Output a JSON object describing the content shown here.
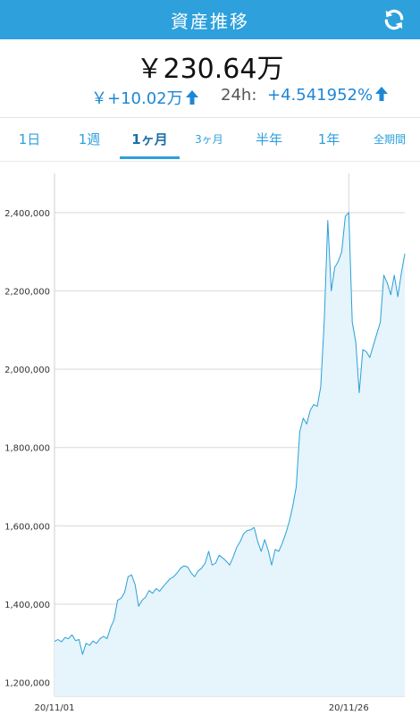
{
  "header": {
    "title": "資産推移",
    "refresh_icon": "refresh-icon"
  },
  "summary": {
    "total": "￥230.64万",
    "change_amount": "￥+10.02万",
    "change_label": "24h:",
    "change_percent": "+4.541952%"
  },
  "tabs": [
    {
      "label": "1日"
    },
    {
      "label": "1週"
    },
    {
      "label": "1ヶ月",
      "active": true
    },
    {
      "label": "3ヶ月"
    },
    {
      "label": "半年"
    },
    {
      "label": "1年"
    },
    {
      "label": "全期間"
    }
  ],
  "colors": {
    "accent": "#2ea0dc",
    "line": "#2aa0d8",
    "fill": "#e6f4fb",
    "positive": "#1d87d6"
  },
  "chart_data": {
    "type": "area",
    "x_ticks": [
      "20/11/01",
      "20/11/26"
    ],
    "y_ticks": [
      "1,200,000",
      "1,400,000",
      "1,600,000",
      "1,800,000",
      "2,000,000",
      "2,200,000",
      "2,400,000"
    ],
    "ylim": [
      1165000,
      2500000
    ],
    "xlim": [
      0,
      100
    ],
    "x_tick_positions": [
      0,
      84
    ],
    "grid": "horizontal",
    "series": [
      {
        "values": [
          [
            0,
            1305000
          ],
          [
            1,
            1310000
          ],
          [
            2,
            1304000
          ],
          [
            3,
            1315000
          ],
          [
            4,
            1312000
          ],
          [
            5,
            1322000
          ],
          [
            6,
            1307000
          ],
          [
            7,
            1310000
          ],
          [
            8,
            1272000
          ],
          [
            9,
            1300000
          ],
          [
            10,
            1295000
          ],
          [
            11,
            1306000
          ],
          [
            12,
            1300000
          ],
          [
            13,
            1312000
          ],
          [
            14,
            1318000
          ],
          [
            15,
            1312000
          ],
          [
            16,
            1340000
          ],
          [
            17,
            1360000
          ],
          [
            18,
            1410000
          ],
          [
            19,
            1415000
          ],
          [
            20,
            1430000
          ],
          [
            21,
            1470000
          ],
          [
            22,
            1475000
          ],
          [
            23,
            1450000
          ],
          [
            24,
            1395000
          ],
          [
            25,
            1410000
          ],
          [
            26,
            1418000
          ],
          [
            27,
            1435000
          ],
          [
            28,
            1428000
          ],
          [
            29,
            1440000
          ],
          [
            30,
            1433000
          ],
          [
            31,
            1445000
          ],
          [
            32,
            1455000
          ],
          [
            33,
            1465000
          ],
          [
            34,
            1470000
          ],
          [
            35,
            1480000
          ],
          [
            36,
            1492000
          ],
          [
            37,
            1498000
          ],
          [
            38,
            1495000
          ],
          [
            39,
            1480000
          ],
          [
            40,
            1470000
          ],
          [
            41,
            1485000
          ],
          [
            42,
            1492000
          ],
          [
            43,
            1505000
          ],
          [
            44,
            1535000
          ],
          [
            45,
            1500000
          ],
          [
            46,
            1505000
          ],
          [
            47,
            1525000
          ],
          [
            48,
            1518000
          ],
          [
            49,
            1510000
          ],
          [
            50,
            1500000
          ],
          [
            51,
            1520000
          ],
          [
            52,
            1545000
          ],
          [
            53,
            1560000
          ],
          [
            54,
            1580000
          ],
          [
            55,
            1588000
          ],
          [
            56,
            1590000
          ],
          [
            57,
            1596000
          ],
          [
            58,
            1560000
          ],
          [
            59,
            1535000
          ],
          [
            60,
            1565000
          ],
          [
            61,
            1538000
          ],
          [
            62,
            1500000
          ],
          [
            63,
            1540000
          ],
          [
            64,
            1535000
          ],
          [
            65,
            1555000
          ],
          [
            66,
            1580000
          ],
          [
            67,
            1610000
          ],
          [
            68,
            1650000
          ],
          [
            69,
            1700000
          ],
          [
            70,
            1840000
          ],
          [
            71,
            1875000
          ],
          [
            72,
            1860000
          ],
          [
            73,
            1895000
          ],
          [
            74,
            1910000
          ],
          [
            75,
            1905000
          ],
          [
            76,
            1955000
          ],
          [
            77,
            2120000
          ],
          [
            78,
            2380000
          ],
          [
            79,
            2200000
          ],
          [
            80,
            2260000
          ],
          [
            81,
            2275000
          ],
          [
            82,
            2300000
          ],
          [
            83,
            2390000
          ],
          [
            84,
            2400000
          ],
          [
            85,
            2120000
          ],
          [
            86,
            2070000
          ],
          [
            87,
            1940000
          ],
          [
            88,
            2050000
          ],
          [
            89,
            2045000
          ],
          [
            90,
            2030000
          ],
          [
            91,
            2060000
          ],
          [
            92,
            2090000
          ],
          [
            93,
            2120000
          ],
          [
            94,
            2240000
          ],
          [
            95,
            2220000
          ],
          [
            96,
            2190000
          ],
          [
            97,
            2240000
          ],
          [
            98,
            2185000
          ],
          [
            99,
            2245000
          ],
          [
            100,
            2295000
          ]
        ]
      }
    ]
  }
}
